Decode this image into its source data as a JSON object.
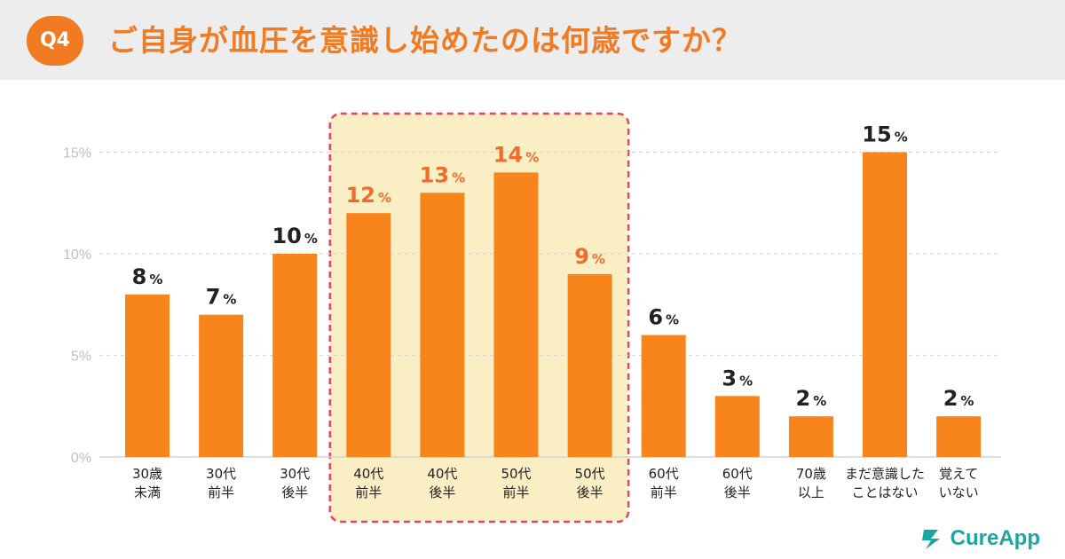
{
  "header": {
    "badge": "Q4",
    "title": "ご自身が血圧を意識し始めたのは何歳ですか？"
  },
  "brand": {
    "name": "CureApp"
  },
  "colors": {
    "accent": "#f07b22",
    "bar": "#f7851c",
    "highlight_fill": "#faeec5",
    "highlight_border": "#e44662",
    "grid": "#d9d9d9",
    "tick_text": "#bfbfbf",
    "label_dark": "#222222",
    "label_highlight": "#ef6d2c",
    "brand": "#1aa7a1"
  },
  "chart_data": {
    "type": "bar",
    "title": "ご自身が血圧を意識し始めたのは何歳ですか？",
    "unit": "%",
    "categories": [
      [
        "30歳",
        "未満"
      ],
      [
        "30代",
        "前半"
      ],
      [
        "30代",
        "後半"
      ],
      [
        "40代",
        "前半"
      ],
      [
        "40代",
        "後半"
      ],
      [
        "50代",
        "前半"
      ],
      [
        "50代",
        "後半"
      ],
      [
        "60代",
        "前半"
      ],
      [
        "60代",
        "後半"
      ],
      [
        "70歳",
        "以上"
      ],
      [
        "まだ意識した",
        "ことはない"
      ],
      [
        "覚えて",
        "いない"
      ]
    ],
    "values": [
      8,
      7,
      10,
      12,
      13,
      14,
      9,
      6,
      3,
      2,
      15,
      2
    ],
    "highlighted": [
      3,
      4,
      5,
      6
    ],
    "yticks": [
      "0%",
      "5%",
      "10%",
      "15%"
    ],
    "ytick_values": [
      0,
      5,
      10,
      15
    ],
    "ylim": [
      0,
      15.5
    ],
    "grid": true
  }
}
